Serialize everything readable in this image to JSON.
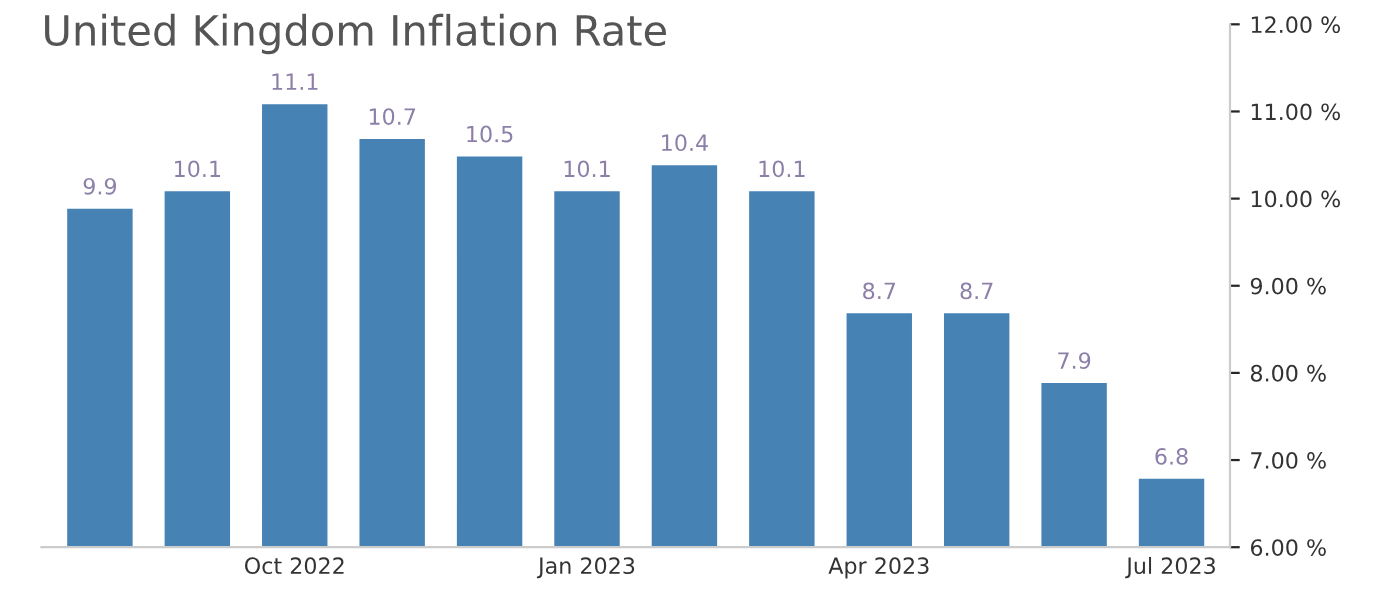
{
  "chart_data": {
    "type": "bar",
    "title": "United Kingdom Inflation Rate",
    "categories": [
      null,
      null,
      "Oct 2022",
      null,
      null,
      "Jan 2023",
      null,
      null,
      "Apr 2023",
      null,
      null,
      "Jul 2023"
    ],
    "values": [
      9.9,
      10.1,
      11.1,
      10.7,
      10.5,
      10.1,
      10.4,
      10.1,
      8.7,
      8.7,
      7.9,
      6.8
    ],
    "color": "#4682b4",
    "ylim": [
      6,
      12
    ],
    "yticks": [
      {
        "value": 6,
        "label": "6.00 %"
      },
      {
        "value": 7,
        "label": "7.00 %"
      },
      {
        "value": 8,
        "label": "8.00 %"
      },
      {
        "value": 9,
        "label": "9.00 %"
      },
      {
        "value": 10,
        "label": "10.00 %"
      },
      {
        "value": 11,
        "label": "11.00 %"
      },
      {
        "value": 12,
        "label": "12.00 %"
      }
    ],
    "data_labels": true,
    "grid": false,
    "legend": false
  }
}
